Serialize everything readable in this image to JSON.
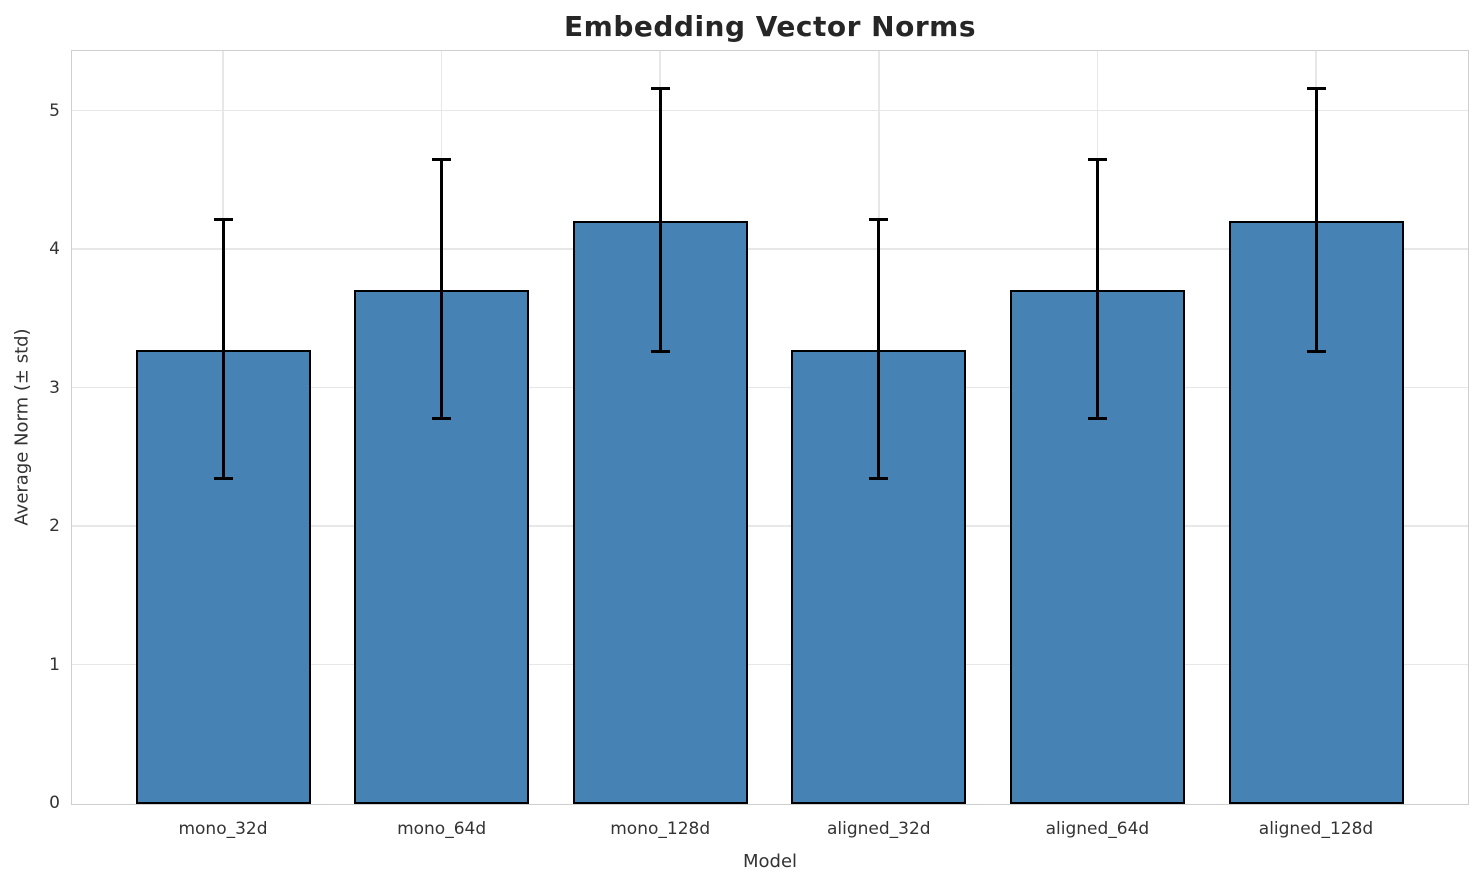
{
  "figure": {
    "title": "Embedding Vector Norms",
    "xlabel": "Model",
    "ylabel": "Average Norm (± std)"
  },
  "chart_data": {
    "type": "bar",
    "title": "Embedding Vector Norms",
    "xlabel": "Model",
    "ylabel": "Average Norm (± std)",
    "categories": [
      "mono_32d",
      "mono_64d",
      "mono_128d",
      "aligned_32d",
      "aligned_64d",
      "aligned_128d"
    ],
    "values": [
      3.28,
      3.71,
      4.21,
      3.28,
      3.71,
      4.21
    ],
    "errors": [
      0.94,
      0.94,
      0.95,
      0.94,
      0.94,
      0.95
    ],
    "error_style": "symmetric (± std), black caps",
    "yticks": [
      0,
      1,
      2,
      3,
      4,
      5
    ],
    "ylim": [
      0,
      5.43
    ],
    "grid": true,
    "grid_lines": "horizontal at integer ticks, vertical at category centers",
    "legend": null,
    "bar_color": "#4682b4",
    "bar_edge_color": "#000000",
    "error_color": "#000000",
    "grid_color": "#e7e7e7",
    "spine_color": "#cfcfcf",
    "text_color": "#262626"
  }
}
